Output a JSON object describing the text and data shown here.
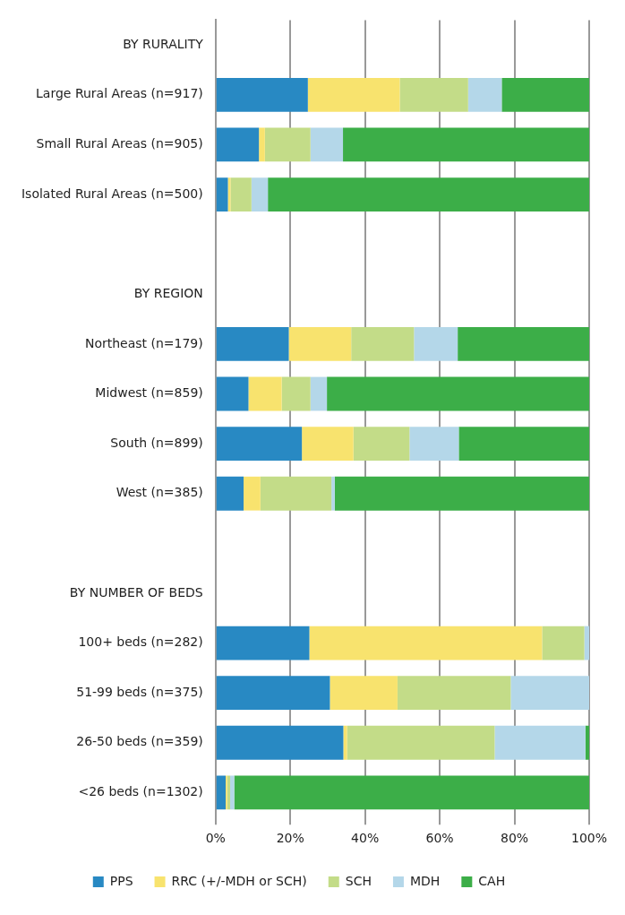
{
  "chart_data": {
    "type": "bar",
    "orientation": "horizontal",
    "stacked": true,
    "categories": [
      "BY RURALITY",
      "Large Rural Areas (n=917)",
      "Small Rural Areas (n=905)",
      "Isolated Rural Areas (n=500)",
      null,
      "BY REGION",
      "Northeast (n=179)",
      "Midwest (n=859)",
      "South (n=899)",
      "West (n=385)",
      null,
      "BY NUMBER OF BEDS",
      "100+ beds (n=282)",
      "51-99 beds (n=375)",
      "26-50 beds (n=359)",
      "<26 beds (n=1302)"
    ],
    "series": [
      {
        "name": "PPS",
        "color": "#2889c3",
        "values": [
          null,
          24.7,
          11.6,
          3.3,
          null,
          null,
          19.6,
          8.8,
          23.1,
          7.5,
          null,
          null,
          25.1,
          30.6,
          34.2,
          2.7
        ]
      },
      {
        "name": "RRC (+/-MDH or SCH)",
        "color": "#f8e36e",
        "values": [
          null,
          24.6,
          1.6,
          0.7,
          null,
          null,
          16.7,
          8.9,
          13.8,
          4.5,
          null,
          null,
          62.3,
          18.1,
          1.0,
          0.4
        ]
      },
      {
        "name": "SCH",
        "color": "#c3dc88",
        "values": [
          null,
          18.3,
          12.2,
          5.6,
          null,
          null,
          16.8,
          7.7,
          15.0,
          19.0,
          null,
          null,
          11.3,
          30.3,
          39.5,
          0.8
        ]
      },
      {
        "name": "MDH",
        "color": "#b4d7e9",
        "values": [
          null,
          9.0,
          8.7,
          4.4,
          null,
          null,
          11.7,
          4.4,
          13.2,
          0.9,
          null,
          null,
          1.3,
          21.0,
          24.3,
          1.1
        ]
      },
      {
        "name": "CAH",
        "color": "#3cae48",
        "values": [
          null,
          23.4,
          65.9,
          86.0,
          null,
          null,
          35.2,
          70.2,
          34.9,
          68.1,
          null,
          null,
          0,
          0,
          1.0,
          95.0
        ]
      }
    ],
    "xlim": [
      0,
      100
    ],
    "xticks": [
      {
        "value": 0,
        "label": "0%"
      },
      {
        "value": 20,
        "label": "20%"
      },
      {
        "value": 40,
        "label": "40%"
      },
      {
        "value": 60,
        "label": "60%"
      },
      {
        "value": 80,
        "label": "80%"
      },
      {
        "value": 100,
        "label": "100%"
      }
    ],
    "grid": "x",
    "legend": "bottom"
  }
}
